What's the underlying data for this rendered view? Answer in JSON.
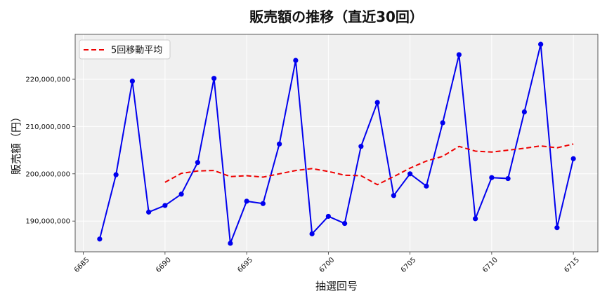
{
  "chart_data": {
    "type": "line",
    "title": "販売額の推移（直近30回）",
    "xlabel": "抽選回号",
    "ylabel": "販売額（円）",
    "xlim": [
      6684.5,
      6716.5
    ],
    "ylim": [
      183500000,
      229500000
    ],
    "x_ticks": [
      6685,
      6690,
      6695,
      6700,
      6705,
      6710,
      6715
    ],
    "y_ticks": [
      190000000,
      200000000,
      210000000,
      220000000
    ],
    "y_tick_labels": [
      "190,000,000",
      "200,000,000",
      "210,000,000",
      "220,000,000"
    ],
    "grid": true,
    "legend_position": "top-left",
    "x": [
      6686,
      6687,
      6688,
      6689,
      6690,
      6691,
      6692,
      6693,
      6694,
      6695,
      6696,
      6697,
      6698,
      6699,
      6700,
      6701,
      6702,
      6703,
      6704,
      6705,
      6706,
      6707,
      6708,
      6709,
      6710,
      6711,
      6712,
      6713,
      6714,
      6715
    ],
    "series": [
      {
        "values": [
          186200000,
          199800000,
          219600000,
          191900000,
          193300000,
          195700000,
          202400000,
          220200000,
          185300000,
          194200000,
          193700000,
          206300000,
          224000000,
          187300000,
          191000000,
          189500000,
          205800000,
          215100000,
          195400000,
          200000000,
          197400000,
          210800000,
          225200000,
          190500000,
          199200000,
          199000000,
          213100000,
          227400000,
          188600000,
          203200000
        ],
        "color": "#0000ee",
        "style": "solid",
        "marker": "circle"
      },
      {
        "name": "5回移動平均",
        "x": [
          6690,
          6691,
          6692,
          6693,
          6694,
          6695,
          6696,
          6697,
          6698,
          6699,
          6700,
          6701,
          6702,
          6703,
          6704,
          6705,
          6706,
          6707,
          6708,
          6709,
          6710,
          6711,
          6712,
          6713,
          6714,
          6715
        ],
        "values": [
          198200000,
          200100000,
          200600000,
          200700000,
          199400000,
          199600000,
          199300000,
          200000000,
          200700000,
          201100000,
          200500000,
          199700000,
          199600000,
          197700000,
          199400000,
          201200000,
          202700000,
          203700000,
          205800000,
          204800000,
          204600000,
          205000000,
          205400000,
          205900000,
          205500000,
          206300000
        ],
        "color": "#ee0000",
        "style": "dashed"
      }
    ]
  }
}
